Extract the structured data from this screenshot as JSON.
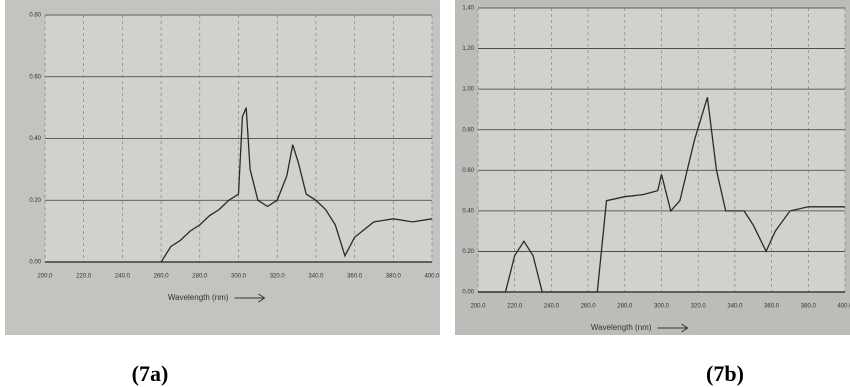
{
  "chart_data": [
    {
      "type": "line",
      "title": "(7a)",
      "x_label": "Wavelength (nm)",
      "color": "#2a2a2a",
      "grid": true,
      "x": [
        260,
        265,
        270,
        275,
        280,
        285,
        290,
        295,
        300,
        302,
        304,
        306,
        310,
        315,
        320,
        325,
        328,
        331,
        335,
        340,
        345,
        350,
        355,
        360,
        370,
        380,
        390,
        400
      ],
      "values": [
        0.0,
        0.05,
        0.07,
        0.1,
        0.12,
        0.15,
        0.17,
        0.2,
        0.22,
        0.47,
        0.5,
        0.3,
        0.2,
        0.18,
        0.2,
        0.28,
        0.38,
        0.32,
        0.22,
        0.2,
        0.17,
        0.12,
        0.02,
        0.08,
        0.13,
        0.14,
        0.13,
        0.14
      ],
      "xlim": [
        200,
        400
      ],
      "xticks": [
        {
          "value": 200,
          "label": "200.0"
        },
        {
          "value": 220,
          "label": "220.0"
        },
        {
          "value": 240,
          "label": "240.0"
        },
        {
          "value": 260,
          "label": "260.0"
        },
        {
          "value": 280,
          "label": "280.0"
        },
        {
          "value": 300,
          "label": "300.0"
        },
        {
          "value": 320,
          "label": "320.0"
        },
        {
          "value": 340,
          "label": "340.0"
        },
        {
          "value": 360,
          "label": "360.0"
        },
        {
          "value": 380,
          "label": "380.0"
        },
        {
          "value": 400,
          "label": "400.0"
        }
      ],
      "ylim": [
        0,
        0.8
      ],
      "yticks": [
        {
          "value": 0,
          "label": "0.00"
        },
        {
          "value": 0.2,
          "label": "0.20"
        },
        {
          "value": 0.4,
          "label": "0.40"
        },
        {
          "value": 0.6,
          "label": "0.60"
        },
        {
          "value": 0.8,
          "label": "0.80"
        }
      ]
    },
    {
      "type": "line",
      "title": "(7b)",
      "x_label": "Wavelength (nm)",
      "color": "#2a2a2a",
      "grid": true,
      "x": [
        200,
        215,
        220,
        225,
        230,
        235,
        265,
        270,
        280,
        290,
        298,
        300,
        305,
        310,
        318,
        325,
        330,
        335,
        345,
        350,
        357,
        362,
        370,
        380,
        400
      ],
      "values": [
        0.0,
        0.0,
        0.18,
        0.25,
        0.18,
        0.0,
        0.0,
        0.45,
        0.47,
        0.48,
        0.5,
        0.58,
        0.4,
        0.45,
        0.75,
        0.96,
        0.6,
        0.4,
        0.4,
        0.33,
        0.2,
        0.3,
        0.4,
        0.42,
        0.42
      ],
      "xlim": [
        200,
        400
      ],
      "xticks": [
        {
          "value": 200,
          "label": "200.0"
        },
        {
          "value": 220,
          "label": "220.0"
        },
        {
          "value": 240,
          "label": "240.0"
        },
        {
          "value": 260,
          "label": "260.0"
        },
        {
          "value": 280,
          "label": "280.0"
        },
        {
          "value": 300,
          "label": "300.0"
        },
        {
          "value": 320,
          "label": "320.0"
        },
        {
          "value": 340,
          "label": "340.0"
        },
        {
          "value": 360,
          "label": "360.0"
        },
        {
          "value": 380,
          "label": "380.0"
        },
        {
          "value": 400,
          "label": "400.0"
        }
      ],
      "ylim": [
        0,
        1.4
      ],
      "yticks": [
        {
          "value": 0,
          "label": "0.00"
        },
        {
          "value": 0.2,
          "label": "0.20"
        },
        {
          "value": 0.4,
          "label": "0.40"
        },
        {
          "value": 0.6,
          "label": "0.60"
        },
        {
          "value": 0.8,
          "label": "0.80"
        },
        {
          "value": 1.0,
          "label": "1.00"
        },
        {
          "value": 1.2,
          "label": "1.20"
        },
        {
          "value": 1.4,
          "label": "1.40"
        }
      ]
    }
  ]
}
